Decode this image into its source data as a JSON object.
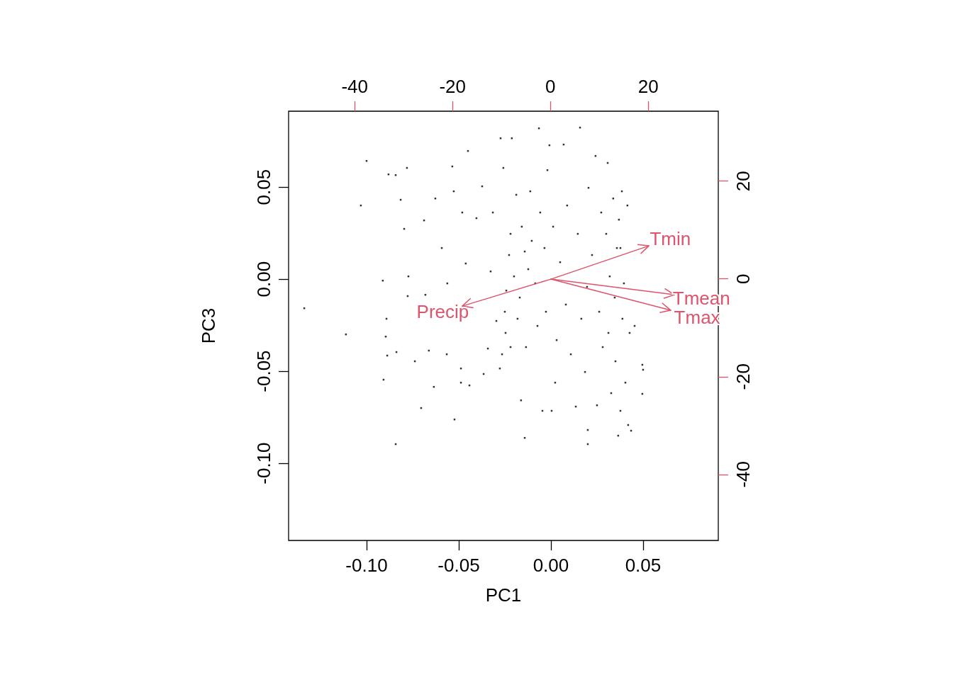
{
  "chart_data": {
    "type": "scatter",
    "xlabel": "PC1",
    "ylabel": "PC3",
    "xlim": [
      -0.1423,
      0.0908
    ],
    "ylim": [
      -0.1419,
      0.0912
    ],
    "xticks": [
      {
        "value": -0.1,
        "label": "-0.10"
      },
      {
        "value": -0.05,
        "label": "-0.05"
      },
      {
        "value": 0,
        "label": "0.00"
      },
      {
        "value": 0.05,
        "label": "0.05"
      }
    ],
    "yticks": [
      {
        "value": -0.1,
        "label": "-0.10"
      },
      {
        "value": -0.05,
        "label": "-0.05"
      },
      {
        "value": 0,
        "label": "0.00"
      },
      {
        "value": 0.05,
        "label": "0.05"
      }
    ],
    "x2lim": [
      -53.5,
      34.3
    ],
    "x2ticks": [
      -40,
      -20,
      0,
      20
    ],
    "y2lim": [
      -53.5,
      34.3
    ],
    "y2ticks": [
      -40,
      -20,
      0,
      20
    ],
    "grid": false,
    "series": [
      {
        "color": "#000000",
        "marker": "square",
        "x": [
          -0.1338,
          -0.1112,
          -0.1031,
          -0.1,
          -0.0912,
          -0.0908,
          -0.0896,
          -0.0888,
          -0.0881,
          -0.0842,
          -0.0842,
          -0.0838,
          -0.0815,
          -0.0796,
          -0.0781,
          -0.0773,
          -0.0738,
          -0.0704,
          -0.0688,
          -0.0681,
          -0.0662,
          -0.0635,
          -0.0627,
          -0.0592,
          -0.0562,
          -0.0535,
          -0.0527,
          -0.0523,
          -0.0488,
          -0.0481,
          -0.0462,
          -0.045,
          -0.0442,
          -0.0404,
          -0.0373,
          -0.0365,
          -0.0342,
          -0.0327,
          -0.0315,
          -0.0296,
          -0.0273,
          -0.0265,
          -0.0258,
          -0.025,
          -0.0246,
          -0.0242,
          -0.0227,
          -0.0219,
          -0.0212,
          -0.02,
          -0.0188,
          -0.0181,
          -0.0169,
          -0.0162,
          -0.0158,
          -0.0142,
          -0.0135,
          -0.0123,
          -0.0112,
          -0.0142,
          -0.0104,
          -0.0085,
          -0.0073,
          -0.0065,
          -0.0058,
          -0.0046,
          -0.0035,
          -0.0027,
          -0.0019,
          -0.0008,
          0.0004,
          0.0012,
          0.0023,
          0.0031,
          0.005,
          0.0069,
          0.0081,
          0.0088,
          0.0108,
          0.0135,
          0.0146,
          0.0158,
          0.0165,
          0.0185,
          0.0196,
          0.02,
          0.02,
          0.0204,
          0.0223,
          0.0242,
          0.025,
          0.0262,
          0.0273,
          0.0281,
          0.03,
          0.0308,
          0.0312,
          0.0319,
          0.0327,
          0.0338,
          0.0346,
          0.035,
          0.0358,
          0.0365,
          0.0369,
          0.0377,
          0.0385,
          0.0388,
          0.0396,
          0.0404,
          0.0415,
          0.0419,
          0.0427,
          0.0435,
          0.0454,
          0.0496,
          0.05,
          0.0496,
          0.0377,
          -0.0219,
          -0.0277,
          -0.0488,
          -0.0565,
          -0.0777,
          -0.0892
        ],
        "values": [
          -0.0158,
          -0.03,
          0.04,
          0.0642,
          -0.0008,
          -0.0546,
          -0.0312,
          -0.0415,
          0.0569,
          0.0565,
          -0.0896,
          -0.0396,
          0.0431,
          0.0273,
          0.0604,
          0.0015,
          -0.0446,
          -0.07,
          0.0319,
          -0.0085,
          -0.0388,
          -0.0585,
          0.0438,
          0.0169,
          -0.0023,
          0.0612,
          0.0477,
          -0.0762,
          -0.0485,
          0.0362,
          0.0085,
          0.0696,
          -0.0577,
          0.0331,
          0.0504,
          -0.0515,
          -0.0377,
          0.0042,
          0.0362,
          -0.0227,
          0.0765,
          -0.0408,
          0.0604,
          -0.0177,
          -0.0292,
          -0.0062,
          0.0131,
          0.0246,
          0.0765,
          0.0015,
          0.0458,
          -0.0215,
          -0.01,
          -0.0658,
          0.0285,
          0.015,
          -0.0369,
          0.0054,
          0.0477,
          -0.0862,
          0.0208,
          -0.0023,
          -0.0254,
          0.0819,
          0.0362,
          -0.0715,
          0.0169,
          -0.0177,
          0.0592,
          0.0727,
          -0.0715,
          0.0285,
          -0.0562,
          -0.0331,
          0.0092,
          0.0731,
          -0.0138,
          0.04,
          -0.0408,
          -0.0692,
          0.0246,
          0.0823,
          -0.0215,
          -0.0504,
          -0.0042,
          -0.0819,
          -0.0896,
          0.0496,
          0.0131,
          0.0669,
          -0.0685,
          -0.0177,
          0.0362,
          -0.0369,
          0.0246,
          0.0631,
          -0.0292,
          0.0015,
          -0.0619,
          0.0438,
          -0.01,
          -0.0446,
          0.0169,
          -0.085,
          0.0323,
          -0.0715,
          0.0477,
          -0.0215,
          -0.0023,
          -0.0562,
          0.04,
          -0.0792,
          -0.0292,
          -0.0823,
          -0.0254,
          -0.0465,
          -0.0492,
          -0.0623,
          0.0169,
          -0.0369,
          -0.0485,
          -0.0562,
          -0.0408,
          -0.0092,
          -0.0215
        ]
      }
    ],
    "annotations": [
      "Tmin",
      "Tmean",
      "Tmax",
      "Precip"
    ]
  }
}
